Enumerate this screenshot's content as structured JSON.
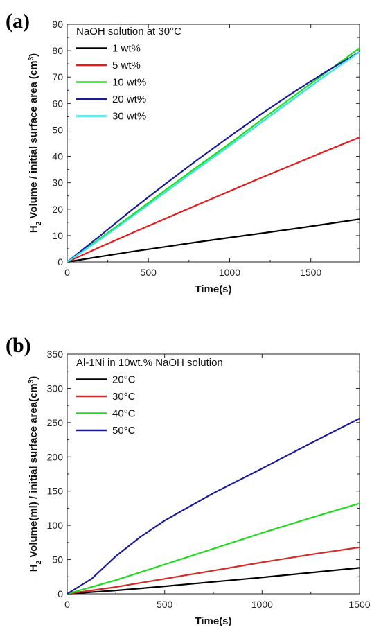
{
  "chart_data": [
    {
      "type": "line",
      "panel_label": "(a)",
      "legend_title": "NaOH solution at 30°C",
      "xlabel": "Time(s)",
      "ylabel": "H2 Volume / initial surface area (cm3)",
      "ylabel_parts": {
        "prefix": "H",
        "sub": "2",
        "middle": " Volume / initial surface area (cm",
        "sup": "3",
        "suffix": ")"
      },
      "xlim": [
        0,
        1800
      ],
      "ylim": [
        0,
        90
      ],
      "xticks": [
        0,
        500,
        1000,
        1500
      ],
      "yticks": [
        0,
        10,
        20,
        30,
        40,
        50,
        60,
        70,
        80,
        90
      ],
      "legend_position": "top-left",
      "series": [
        {
          "name": "1 wt%",
          "color": "#000000",
          "x": [
            0,
            200,
            400,
            600,
            800,
            1000,
            1200,
            1400,
            1600,
            1800
          ],
          "y": [
            0,
            2,
            3.9,
            5.7,
            7.5,
            9.2,
            10.9,
            12.6,
            14.4,
            16.2
          ]
        },
        {
          "name": "5 wt%",
          "color": "#e8191b",
          "x": [
            0,
            200,
            400,
            600,
            800,
            1000,
            1200,
            1400,
            1600,
            1800
          ],
          "y": [
            0,
            5.6,
            11,
            16.3,
            21.6,
            26.8,
            32,
            37.1,
            42.2,
            47.2
          ]
        },
        {
          "name": "10 wt%",
          "color": "#1fdc1f",
          "x": [
            0,
            200,
            400,
            600,
            800,
            1000,
            1200,
            1400,
            1600,
            1800
          ],
          "y": [
            0,
            8.8,
            17.8,
            27,
            36,
            44.8,
            54,
            63,
            72,
            81
          ]
        },
        {
          "name": "20 wt%",
          "color": "#1a1a9c",
          "x": [
            0,
            200,
            400,
            600,
            800,
            1000,
            1200,
            1400,
            1600,
            1800
          ],
          "y": [
            0,
            9.8,
            19.8,
            29.3,
            38.6,
            47.5,
            56.2,
            64.5,
            72.3,
            79.5
          ]
        },
        {
          "name": "30 wt%",
          "color": "#2ee6e6",
          "x": [
            0,
            200,
            400,
            600,
            800,
            1000,
            1200,
            1400,
            1600,
            1800
          ],
          "y": [
            0,
            8.4,
            17.2,
            26.2,
            35.2,
            44,
            53,
            62,
            71,
            79.5
          ]
        }
      ]
    },
    {
      "type": "line",
      "panel_label": "(b)",
      "legend_title": "Al-1Ni in 10wt.% NaOH solution",
      "xlabel": "Time(s)",
      "ylabel": "H2 Volume(ml) / initial surface area(cm3)",
      "ylabel_parts": {
        "prefix": "H",
        "sub": "2",
        "middle": " Volume(ml) / initial surface area(cm",
        "sup": "3",
        "suffix": ")"
      },
      "xlim": [
        0,
        1500
      ],
      "ylim": [
        0,
        350
      ],
      "xticks": [
        0,
        500,
        1000,
        1500
      ],
      "yticks": [
        0,
        50,
        100,
        150,
        200,
        250,
        300,
        350
      ],
      "legend_position": "top-left",
      "series": [
        {
          "name": "20°C",
          "color": "#000000",
          "x": [
            0,
            250,
            500,
            750,
            1000,
            1250,
            1500
          ],
          "y": [
            0,
            5,
            11,
            17.5,
            24,
            31,
            38
          ]
        },
        {
          "name": "30°C",
          "color": "#d42a2a",
          "x": [
            0,
            250,
            500,
            750,
            1000,
            1250,
            1500
          ],
          "y": [
            0,
            10,
            22,
            34,
            46,
            57.5,
            68
          ]
        },
        {
          "name": "40°C",
          "color": "#1fdc1f",
          "x": [
            0,
            250,
            500,
            750,
            1000,
            1250,
            1500
          ],
          "y": [
            0,
            20,
            43,
            66,
            89,
            111,
            132
          ]
        },
        {
          "name": "50°C",
          "color": "#1a1a9c",
          "x": [
            0,
            125,
            250,
            375,
            500,
            750,
            1000,
            1250,
            1500
          ],
          "y": [
            0,
            22,
            55,
            83,
            107,
            147,
            183,
            220,
            256
          ]
        }
      ]
    }
  ]
}
